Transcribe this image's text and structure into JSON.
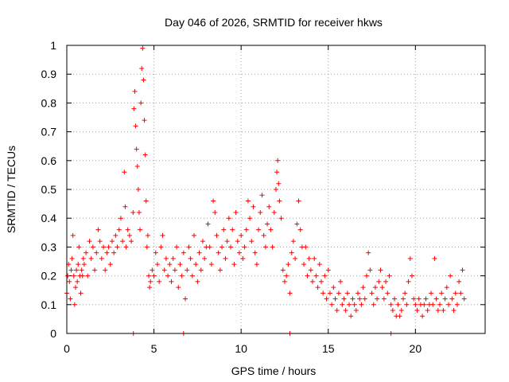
{
  "chart_data": {
    "type": "scatter",
    "title": "Day 046 of 2026, SRMTID for receiver hkws",
    "xlabel": "GPS time / hours",
    "ylabel": "SRMTID / TECUs",
    "xlim": [
      0,
      24
    ],
    "ylim": [
      0,
      1
    ],
    "xticks": [
      0,
      5,
      10,
      15,
      20
    ],
    "xtick_labels": [
      "0",
      "5",
      "10",
      "15",
      "20"
    ],
    "yticks": [
      0,
      0.1,
      0.2,
      0.3,
      0.4,
      0.5,
      0.6,
      0.7,
      0.8,
      0.9,
      1
    ],
    "ytick_labels": [
      "0",
      "0.1",
      "0.2",
      "0.3",
      "0.4",
      "0.5",
      "0.6",
      "0.7",
      "0.8",
      "0.9",
      "1"
    ],
    "grid": true,
    "marker": "+",
    "color": "#ff0000",
    "series": [
      {
        "name": "SRMTID",
        "points": [
          [
            0.0,
            0.14
          ],
          [
            0.05,
            0.2
          ],
          [
            0.1,
            0.24
          ],
          [
            0.15,
            0.18
          ],
          [
            0.2,
            0.12
          ],
          [
            0.25,
            0.22
          ],
          [
            0.3,
            0.26
          ],
          [
            0.35,
            0.34
          ],
          [
            0.4,
            0.2
          ],
          [
            0.45,
            0.1
          ],
          [
            0.5,
            0.16
          ],
          [
            0.55,
            0.22
          ],
          [
            0.6,
            0.18
          ],
          [
            0.65,
            0.24
          ],
          [
            0.7,
            0.3
          ],
          [
            0.75,
            0.2
          ],
          [
            0.8,
            0.14
          ],
          [
            0.85,
            0.22
          ],
          [
            0.9,
            0.2
          ],
          [
            0.95,
            0.26
          ],
          [
            1.0,
            0.24
          ],
          [
            1.1,
            0.28
          ],
          [
            1.2,
            0.2
          ],
          [
            1.3,
            0.32
          ],
          [
            1.4,
            0.26
          ],
          [
            1.5,
            0.3
          ],
          [
            1.6,
            0.22
          ],
          [
            1.7,
            0.28
          ],
          [
            1.8,
            0.36
          ],
          [
            1.9,
            0.32
          ],
          [
            2.0,
            0.26
          ],
          [
            2.1,
            0.3
          ],
          [
            2.2,
            0.22
          ],
          [
            2.3,
            0.28
          ],
          [
            2.4,
            0.3
          ],
          [
            2.5,
            0.24
          ],
          [
            2.6,
            0.32
          ],
          [
            2.7,
            0.28
          ],
          [
            2.8,
            0.34
          ],
          [
            2.9,
            0.3
          ],
          [
            3.0,
            0.36
          ],
          [
            3.1,
            0.4
          ],
          [
            3.2,
            0.32
          ],
          [
            3.3,
            0.56
          ],
          [
            3.35,
            0.44
          ],
          [
            3.4,
            0.3
          ],
          [
            3.5,
            0.36
          ],
          [
            3.6,
            0.34
          ],
          [
            3.7,
            0.32
          ],
          [
            3.8,
            0.42
          ],
          [
            3.85,
            0.78
          ],
          [
            3.9,
            0.84
          ],
          [
            3.95,
            0.72
          ],
          [
            4.0,
            0.64
          ],
          [
            4.05,
            0.58
          ],
          [
            4.1,
            0.5
          ],
          [
            4.15,
            0.42
          ],
          [
            4.2,
            0.36
          ],
          [
            4.25,
            0.8
          ],
          [
            4.3,
            0.92
          ],
          [
            4.35,
            0.99
          ],
          [
            4.4,
            0.88
          ],
          [
            4.45,
            0.74
          ],
          [
            4.5,
            0.62
          ],
          [
            4.55,
            0.46
          ],
          [
            4.6,
            0.3
          ],
          [
            4.65,
            0.34
          ],
          [
            4.7,
            0.2
          ],
          [
            4.75,
            0.16
          ],
          [
            4.8,
            0.18
          ],
          [
            4.9,
            0.22
          ],
          [
            5.0,
            0.2
          ],
          [
            5.1,
            0.28
          ],
          [
            5.2,
            0.24
          ],
          [
            5.3,
            0.18
          ],
          [
            5.4,
            0.3
          ],
          [
            5.5,
            0.34
          ],
          [
            5.6,
            0.22
          ],
          [
            5.7,
            0.26
          ],
          [
            5.8,
            0.2
          ],
          [
            5.9,
            0.24
          ],
          [
            6.0,
            0.18
          ],
          [
            6.1,
            0.26
          ],
          [
            6.2,
            0.22
          ],
          [
            6.3,
            0.3
          ],
          [
            6.4,
            0.16
          ],
          [
            6.5,
            0.24
          ],
          [
            6.6,
            0.2
          ],
          [
            6.7,
            0.28
          ],
          [
            6.8,
            0.12
          ],
          [
            6.9,
            0.22
          ],
          [
            7.0,
            0.3
          ],
          [
            7.1,
            0.26
          ],
          [
            7.2,
            0.2
          ],
          [
            7.3,
            0.34
          ],
          [
            7.4,
            0.24
          ],
          [
            7.5,
            0.18
          ],
          [
            7.6,
            0.28
          ],
          [
            7.7,
            0.22
          ],
          [
            7.8,
            0.32
          ],
          [
            7.9,
            0.26
          ],
          [
            8.0,
            0.3
          ],
          [
            8.1,
            0.38
          ],
          [
            8.2,
            0.3
          ],
          [
            8.3,
            0.24
          ],
          [
            8.4,
            0.46
          ],
          [
            8.5,
            0.42
          ],
          [
            8.6,
            0.34
          ],
          [
            8.7,
            0.28
          ],
          [
            8.8,
            0.22
          ],
          [
            8.9,
            0.3
          ],
          [
            9.0,
            0.36
          ],
          [
            9.1,
            0.26
          ],
          [
            9.2,
            0.32
          ],
          [
            9.3,
            0.4
          ],
          [
            9.4,
            0.3
          ],
          [
            9.5,
            0.36
          ],
          [
            9.6,
            0.24
          ],
          [
            9.7,
            0.42
          ],
          [
            9.8,
            0.32
          ],
          [
            9.9,
            0.28
          ],
          [
            10.0,
            0.34
          ],
          [
            10.1,
            0.26
          ],
          [
            10.2,
            0.3
          ],
          [
            10.3,
            0.36
          ],
          [
            10.4,
            0.46
          ],
          [
            10.5,
            0.4
          ],
          [
            10.6,
            0.32
          ],
          [
            10.7,
            0.44
          ],
          [
            10.8,
            0.28
          ],
          [
            10.9,
            0.24
          ],
          [
            11.0,
            0.36
          ],
          [
            11.1,
            0.42
          ],
          [
            11.2,
            0.48
          ],
          [
            11.3,
            0.34
          ],
          [
            11.4,
            0.3
          ],
          [
            11.5,
            0.38
          ],
          [
            11.6,
            0.44
          ],
          [
            11.7,
            0.36
          ],
          [
            11.8,
            0.3
          ],
          [
            11.9,
            0.42
          ],
          [
            12.0,
            0.5
          ],
          [
            12.05,
            0.56
          ],
          [
            12.1,
            0.6
          ],
          [
            12.15,
            0.52
          ],
          [
            12.2,
            0.46
          ],
          [
            12.3,
            0.4
          ],
          [
            12.4,
            0.22
          ],
          [
            12.5,
            0.18
          ],
          [
            12.6,
            0.2
          ],
          [
            12.7,
            0.24
          ],
          [
            12.8,
            0.14
          ],
          [
            12.9,
            0.28
          ],
          [
            13.0,
            0.32
          ],
          [
            13.1,
            0.26
          ],
          [
            13.2,
            0.38
          ],
          [
            13.3,
            0.46
          ],
          [
            13.4,
            0.36
          ],
          [
            13.5,
            0.3
          ],
          [
            13.6,
            0.24
          ],
          [
            13.7,
            0.3
          ],
          [
            13.8,
            0.2
          ],
          [
            13.9,
            0.26
          ],
          [
            14.0,
            0.22
          ],
          [
            14.1,
            0.18
          ],
          [
            14.2,
            0.26
          ],
          [
            14.3,
            0.2
          ],
          [
            14.4,
            0.16
          ],
          [
            14.5,
            0.24
          ],
          [
            14.6,
            0.18
          ],
          [
            14.7,
            0.14
          ],
          [
            14.8,
            0.2
          ],
          [
            14.9,
            0.12
          ],
          [
            15.0,
            0.22
          ],
          [
            15.1,
            0.14
          ],
          [
            15.2,
            0.1
          ],
          [
            15.3,
            0.16
          ],
          [
            15.4,
            0.12
          ],
          [
            15.5,
            0.08
          ],
          [
            15.6,
            0.14
          ],
          [
            15.7,
            0.18
          ],
          [
            15.8,
            0.1
          ],
          [
            15.9,
            0.12
          ],
          [
            16.0,
            0.08
          ],
          [
            16.1,
            0.14
          ],
          [
            16.2,
            0.1
          ],
          [
            16.3,
            0.06
          ],
          [
            16.4,
            0.12
          ],
          [
            16.5,
            0.1
          ],
          [
            16.6,
            0.08
          ],
          [
            16.7,
            0.14
          ],
          [
            16.8,
            0.12
          ],
          [
            16.9,
            0.1
          ],
          [
            17.0,
            0.16
          ],
          [
            17.1,
            0.12
          ],
          [
            17.2,
            0.2
          ],
          [
            17.3,
            0.28
          ],
          [
            17.4,
            0.22
          ],
          [
            17.5,
            0.14
          ],
          [
            17.6,
            0.1
          ],
          [
            17.7,
            0.16
          ],
          [
            17.8,
            0.12
          ],
          [
            17.9,
            0.18
          ],
          [
            18.0,
            0.22
          ],
          [
            18.1,
            0.16
          ],
          [
            18.2,
            0.12
          ],
          [
            18.3,
            0.18
          ],
          [
            18.4,
            0.14
          ],
          [
            18.5,
            0.2
          ],
          [
            18.6,
            0.1
          ],
          [
            18.7,
            0.08
          ],
          [
            18.8,
            0.12
          ],
          [
            18.9,
            0.06
          ],
          [
            19.0,
            0.1
          ],
          [
            19.1,
            0.06
          ],
          [
            19.2,
            0.08
          ],
          [
            19.3,
            0.12
          ],
          [
            19.4,
            0.14
          ],
          [
            19.5,
            0.1
          ],
          [
            19.6,
            0.18
          ],
          [
            19.7,
            0.26
          ],
          [
            19.8,
            0.2
          ],
          [
            19.9,
            0.12
          ],
          [
            20.0,
            0.1
          ],
          [
            20.1,
            0.08
          ],
          [
            20.2,
            0.12
          ],
          [
            20.3,
            0.1
          ],
          [
            20.4,
            0.06
          ],
          [
            20.5,
            0.1
          ],
          [
            20.6,
            0.12
          ],
          [
            20.7,
            0.08
          ],
          [
            20.8,
            0.1
          ],
          [
            20.9,
            0.14
          ],
          [
            21.0,
            0.1
          ],
          [
            21.1,
            0.26
          ],
          [
            21.2,
            0.12
          ],
          [
            21.3,
            0.08
          ],
          [
            21.4,
            0.1
          ],
          [
            21.5,
            0.14
          ],
          [
            21.6,
            0.08
          ],
          [
            21.7,
            0.12
          ],
          [
            21.8,
            0.16
          ],
          [
            21.9,
            0.1
          ],
          [
            22.0,
            0.2
          ],
          [
            22.1,
            0.12
          ],
          [
            22.2,
            0.08
          ],
          [
            22.3,
            0.14
          ],
          [
            22.4,
            0.1
          ],
          [
            22.5,
            0.18
          ],
          [
            22.6,
            0.14
          ],
          [
            22.7,
            0.22
          ],
          [
            22.8,
            0.12
          ],
          [
            3.82,
            0.0
          ],
          [
            6.7,
            0.0
          ],
          [
            12.8,
            0.0
          ],
          [
            18.6,
            0.0
          ]
        ]
      }
    ]
  }
}
